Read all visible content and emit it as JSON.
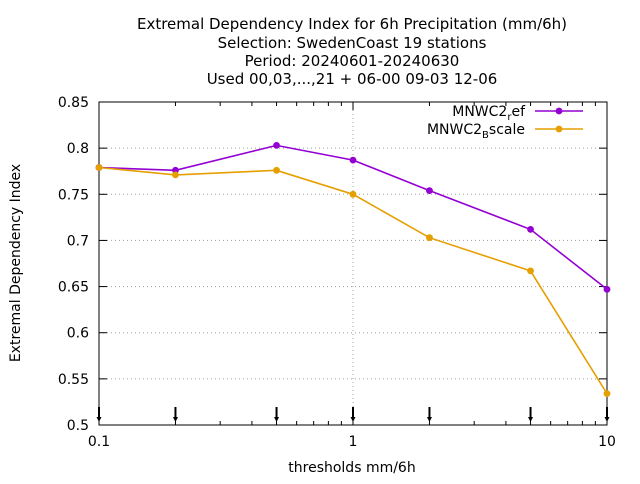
{
  "chart_data": {
    "type": "line",
    "title_lines": [
      "Extremal Dependency Index  for 6h Precipitation (mm/6h)",
      "Selection: SwedenCoast     19 stations",
      "Period: 20240601-20240630",
      "Used 00,03,...,21 + 06-00 09-03 12-06"
    ],
    "xlabel": "thresholds mm/6h",
    "ylabel": "Extremal Dependency Index",
    "xscale": "log",
    "xlim": [
      0.1,
      10
    ],
    "ylim": [
      0.5,
      0.85
    ],
    "x_ticks": [
      0.1,
      1,
      10
    ],
    "x_tick_labels": [
      "0.1",
      "1",
      "10"
    ],
    "y_ticks": [
      0.5,
      0.55,
      0.6,
      0.65,
      0.7,
      0.75,
      0.8,
      0.85
    ],
    "y_tick_labels": [
      "0.5",
      "0.55",
      "0.6",
      "0.65",
      "0.7",
      "0.75",
      "0.8",
      "0.85"
    ],
    "grid": true,
    "legend_position": "top-right",
    "x": [
      0.1,
      0.2,
      0.5,
      1,
      2,
      5,
      10
    ],
    "series": [
      {
        "name_main": "MNWC2",
        "name_sub": "r",
        "name_rest": "ef",
        "color": "#9400d3",
        "values": [
          0.779,
          0.776,
          0.803,
          0.787,
          0.754,
          0.712,
          0.647
        ]
      },
      {
        "name_main": "MNWC2",
        "name_sub": "B",
        "name_rest": "scale",
        "color": "#e69f00",
        "values": [
          0.779,
          0.771,
          0.776,
          0.75,
          0.703,
          0.667,
          0.534
        ]
      }
    ]
  }
}
